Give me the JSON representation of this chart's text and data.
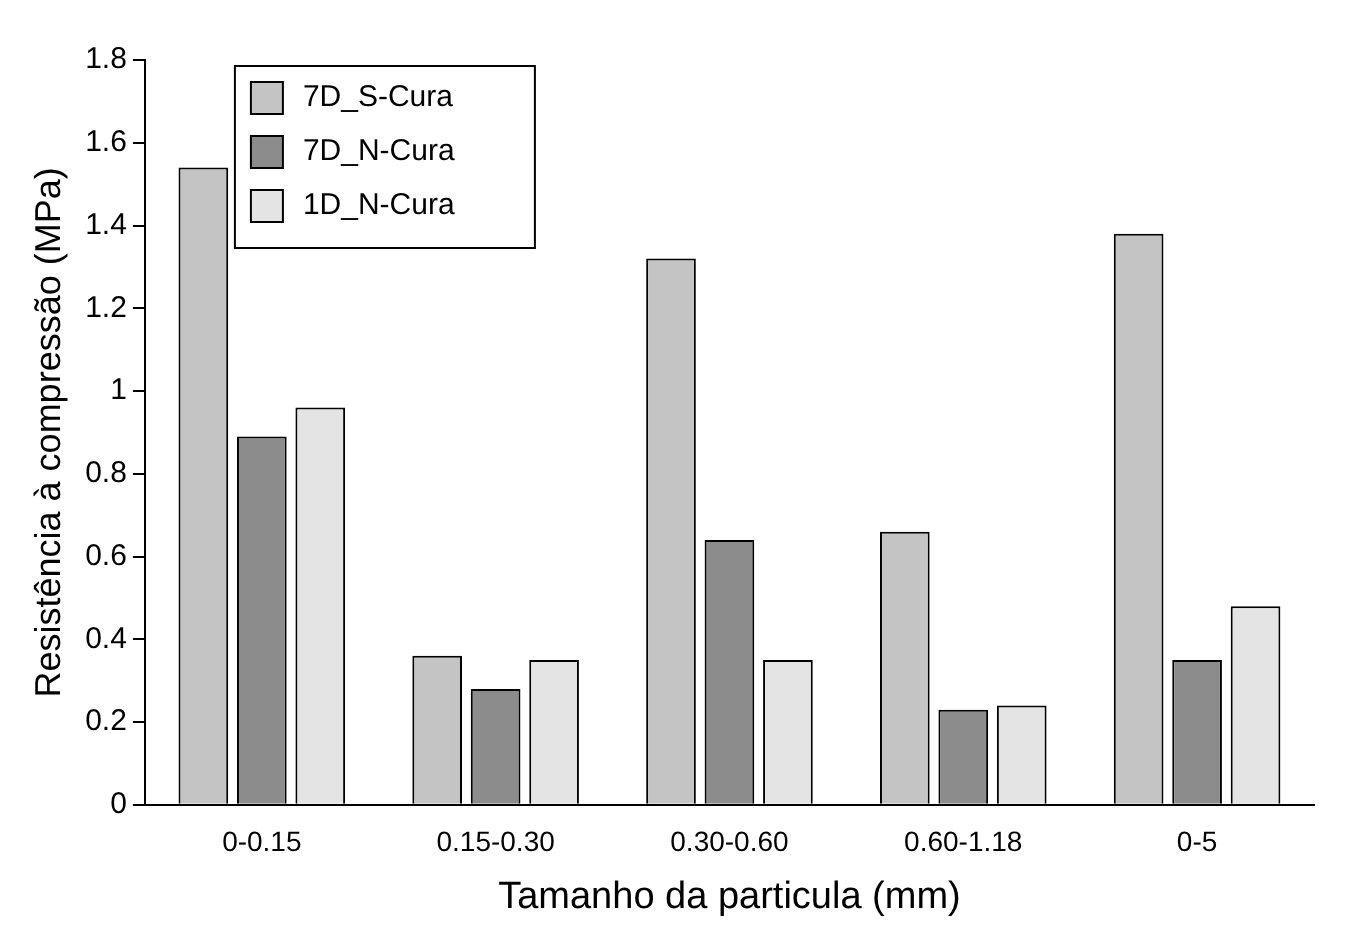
{
  "chart_data": {
    "type": "bar",
    "xlabel": "Tamanho da particula (mm)",
    "ylabel": "Resistência à compressão (MPa)",
    "categories": [
      "0-0.15",
      "0.15-0.30",
      "0.30-0.60",
      "0.60-1.18",
      "0-5"
    ],
    "series": [
      {
        "name": "7D_S-Cura",
        "color": "#c4c4c4",
        "values": [
          1.54,
          0.36,
          1.32,
          0.66,
          1.38
        ]
      },
      {
        "name": "7D_N-Cura",
        "color": "#8c8c8c",
        "values": [
          0.89,
          0.28,
          0.64,
          0.23,
          0.35
        ]
      },
      {
        "name": "1D_N-Cura",
        "color": "#e4e4e4",
        "values": [
          0.96,
          0.35,
          0.35,
          0.24,
          0.48
        ]
      }
    ],
    "ylim": [
      0,
      1.8
    ],
    "yticks": [
      0,
      0.2,
      0.4,
      0.6,
      0.8,
      1,
      1.2,
      1.4,
      1.6,
      1.8
    ],
    "grid": false,
    "legend": "top left"
  }
}
